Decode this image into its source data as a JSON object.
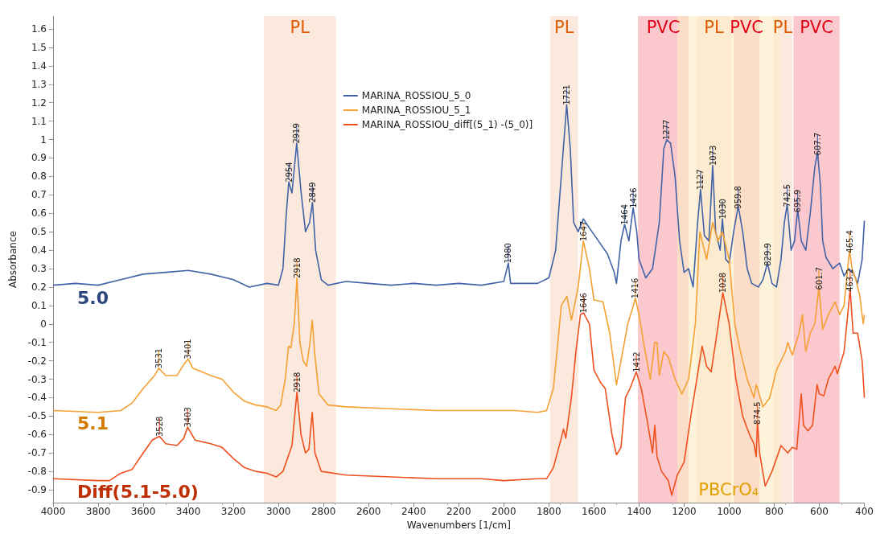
{
  "chart_data": {
    "type": "line",
    "xlabel": "Wavenumbers [1/cm]",
    "ylabel": "Absorbance",
    "xlim": [
      4000,
      400
    ],
    "xticks": [
      4000,
      3800,
      3600,
      3400,
      3200,
      3000,
      2800,
      2600,
      2400,
      2200,
      2000,
      1800,
      1600,
      1400,
      1200,
      1000,
      800,
      600,
      400
    ],
    "ylim": [
      -0.97,
      1.67
    ],
    "yticks": [
      -0.9,
      -0.8,
      -0.7,
      -0.6,
      -0.5,
      -0.4,
      -0.3,
      -0.2,
      -0.1,
      0,
      0.1,
      0.2,
      0.3,
      0.4,
      0.5,
      0.6,
      0.7,
      0.8,
      0.9,
      1,
      1.1,
      1.2,
      1.3,
      1.4,
      1.5,
      1.6
    ],
    "grid": false,
    "legend": "top",
    "marker": "none",
    "line_style": "solid",
    "series": [
      {
        "name": "MARINA_ROSSIOU_5_0",
        "color": "#4262a8",
        "x": [
          4000,
          3900,
          3800,
          3700,
          3600,
          3500,
          3400,
          3300,
          3200,
          3130,
          3050,
          3000,
          2980,
          2965,
          2954,
          2940,
          2919,
          2900,
          2880,
          2862,
          2849,
          2835,
          2810,
          2780,
          2700,
          2600,
          2500,
          2400,
          2300,
          2200,
          2100,
          2000,
          1980,
          1970,
          1900,
          1850,
          1800,
          1770,
          1745,
          1721,
          1705,
          1690,
          1670,
          1647,
          1620,
          1580,
          1540,
          1510,
          1500,
          1480,
          1464,
          1445,
          1426,
          1410,
          1400,
          1370,
          1340,
          1310,
          1290,
          1277,
          1260,
          1240,
          1220,
          1200,
          1180,
          1160,
          1140,
          1127,
          1110,
          1090,
          1073,
          1060,
          1040,
          1030,
          1015,
          1000,
          980,
          959.8,
          940,
          920,
          900,
          870,
          850,
          829.9,
          810,
          790,
          770,
          755,
          742.5,
          725,
          710,
          695.9,
          680,
          660,
          640,
          620,
          607.7,
          595,
          585,
          570,
          540,
          510,
          490,
          470,
          450,
          430,
          410,
          400
        ],
        "values": [
          0.21,
          0.22,
          0.21,
          0.24,
          0.27,
          0.28,
          0.29,
          0.27,
          0.24,
          0.2,
          0.22,
          0.21,
          0.3,
          0.6,
          0.77,
          0.71,
          0.98,
          0.72,
          0.5,
          0.55,
          0.66,
          0.4,
          0.24,
          0.21,
          0.23,
          0.22,
          0.21,
          0.22,
          0.21,
          0.22,
          0.21,
          0.23,
          0.33,
          0.22,
          0.22,
          0.22,
          0.25,
          0.4,
          0.8,
          1.19,
          0.95,
          0.55,
          0.5,
          0.57,
          0.52,
          0.45,
          0.38,
          0.28,
          0.22,
          0.45,
          0.54,
          0.45,
          0.63,
          0.5,
          0.35,
          0.25,
          0.3,
          0.55,
          0.95,
          1.0,
          0.98,
          0.8,
          0.45,
          0.28,
          0.3,
          0.2,
          0.55,
          0.73,
          0.48,
          0.45,
          0.86,
          0.5,
          0.4,
          0.57,
          0.35,
          0.33,
          0.5,
          0.64,
          0.5,
          0.3,
          0.22,
          0.2,
          0.24,
          0.33,
          0.22,
          0.2,
          0.35,
          0.55,
          0.65,
          0.4,
          0.45,
          0.62,
          0.45,
          0.4,
          0.6,
          0.85,
          0.93,
          0.75,
          0.45,
          0.36,
          0.3,
          0.33,
          0.26,
          0.3,
          0.28,
          0.22,
          0.35,
          0.56
        ]
      },
      {
        "name": "MARINA_ROSSIOU_5_1",
        "color": "#f5a032",
        "x": [
          4000,
          3800,
          3700,
          3650,
          3600,
          3550,
          3531,
          3500,
          3450,
          3420,
          3401,
          3380,
          3300,
          3250,
          3200,
          3150,
          3100,
          3050,
          3010,
          2990,
          2970,
          2955,
          2945,
          2930,
          2918,
          2905,
          2890,
          2875,
          2860,
          2850,
          2840,
          2820,
          2780,
          2700,
          2500,
          2300,
          2100,
          1950,
          1850,
          1810,
          1780,
          1760,
          1745,
          1720,
          1700,
          1670,
          1647,
          1620,
          1600,
          1560,
          1530,
          1500,
          1480,
          1450,
          1430,
          1416,
          1400,
          1380,
          1350,
          1330,
          1320,
          1310,
          1290,
          1270,
          1240,
          1210,
          1180,
          1150,
          1130,
          1100,
          1073,
          1050,
          1030,
          1000,
          975,
          950,
          920,
          890,
          880,
          874.5,
          850,
          820,
          790,
          770,
          750,
          740,
          720,
          690,
          675,
          660,
          640,
          620,
          601.7,
          585,
          560,
          530,
          510,
          490,
          470,
          465.4,
          455,
          440,
          420,
          405,
          400
        ],
        "values": [
          -0.47,
          -0.48,
          -0.47,
          -0.43,
          -0.35,
          -0.28,
          -0.24,
          -0.28,
          -0.28,
          -0.22,
          -0.19,
          -0.24,
          -0.28,
          -0.3,
          -0.37,
          -0.42,
          -0.44,
          -0.45,
          -0.47,
          -0.44,
          -0.3,
          -0.12,
          -0.13,
          0.0,
          0.25,
          -0.1,
          -0.2,
          -0.23,
          -0.1,
          0.02,
          -0.15,
          -0.38,
          -0.44,
          -0.45,
          -0.46,
          -0.47,
          -0.47,
          -0.47,
          -0.48,
          -0.47,
          -0.35,
          -0.1,
          0.1,
          0.15,
          0.02,
          0.2,
          0.45,
          0.3,
          0.13,
          0.12,
          -0.05,
          -0.33,
          -0.2,
          0.0,
          0.08,
          0.14,
          0.05,
          -0.1,
          -0.3,
          -0.1,
          -0.1,
          -0.28,
          -0.15,
          -0.18,
          -0.3,
          -0.38,
          -0.3,
          0.0,
          0.5,
          0.35,
          0.55,
          0.45,
          0.5,
          0.35,
          0.0,
          -0.15,
          -0.3,
          -0.4,
          -0.33,
          -0.35,
          -0.45,
          -0.4,
          -0.25,
          -0.2,
          -0.15,
          -0.1,
          -0.17,
          -0.05,
          0.05,
          -0.15,
          -0.05,
          0.0,
          0.2,
          -0.03,
          0.05,
          0.12,
          0.05,
          0.1,
          0.35,
          0.4,
          0.3,
          0.25,
          0.15,
          0.0,
          0.05
        ]
      },
      {
        "name": "MARINA_ROSSIOU_diff[(5_1) -(5_0)]",
        "color": "#f0501e",
        "x": [
          4000,
          3800,
          3750,
          3700,
          3650,
          3600,
          3560,
          3528,
          3500,
          3450,
          3420,
          3403,
          3370,
          3300,
          3250,
          3200,
          3150,
          3100,
          3050,
          3010,
          2980,
          2960,
          2940,
          2918,
          2900,
          2880,
          2865,
          2850,
          2838,
          2810,
          2700,
          2500,
          2300,
          2100,
          2000,
          1850,
          1810,
          1780,
          1745,
          1735,
          1725,
          1700,
          1680,
          1660,
          1646,
          1620,
          1600,
          1570,
          1550,
          1520,
          1500,
          1480,
          1460,
          1440,
          1412,
          1390,
          1360,
          1340,
          1330,
          1320,
          1300,
          1270,
          1255,
          1230,
          1200,
          1170,
          1150,
          1120,
          1100,
          1080,
          1060,
          1028,
          1000,
          970,
          940,
          910,
          890,
          880,
          874.5,
          865,
          840,
          810,
          770,
          740,
          720,
          700,
          680,
          670,
          650,
          630,
          610,
          600,
          580,
          560,
          530,
          520,
          490,
          470,
          463.2,
          450,
          430,
          410,
          400
        ],
        "values": [
          -0.84,
          -0.85,
          -0.85,
          -0.81,
          -0.79,
          -0.7,
          -0.63,
          -0.61,
          -0.65,
          -0.66,
          -0.62,
          -0.56,
          -0.63,
          -0.65,
          -0.67,
          -0.73,
          -0.78,
          -0.8,
          -0.81,
          -0.83,
          -0.8,
          -0.73,
          -0.66,
          -0.37,
          -0.6,
          -0.7,
          -0.68,
          -0.48,
          -0.7,
          -0.8,
          -0.82,
          -0.83,
          -0.84,
          -0.84,
          -0.85,
          -0.84,
          -0.84,
          -0.78,
          -0.62,
          -0.57,
          -0.62,
          -0.4,
          -0.15,
          0.05,
          0.06,
          0.0,
          -0.25,
          -0.32,
          -0.35,
          -0.6,
          -0.71,
          -0.67,
          -0.4,
          -0.35,
          -0.26,
          -0.35,
          -0.55,
          -0.7,
          -0.55,
          -0.72,
          -0.8,
          -0.85,
          -0.93,
          -0.82,
          -0.75,
          -0.5,
          -0.35,
          -0.12,
          -0.23,
          -0.26,
          -0.1,
          0.17,
          0.0,
          -0.3,
          -0.5,
          -0.6,
          -0.65,
          -0.72,
          -0.53,
          -0.7,
          -0.88,
          -0.8,
          -0.66,
          -0.7,
          -0.67,
          -0.68,
          -0.38,
          -0.55,
          -0.58,
          -0.55,
          -0.33,
          -0.38,
          -0.39,
          -0.3,
          -0.23,
          -0.27,
          -0.15,
          0.1,
          0.19,
          -0.05,
          -0.05,
          -0.2,
          -0.4
        ]
      }
    ],
    "bands": [
      {
        "axis": "x",
        "from": 3065,
        "to": 2745,
        "label": "PL",
        "color": "#fbe7da"
      },
      {
        "axis": "x",
        "from": 1795,
        "to": 1670,
        "label": "PL",
        "color": "#fbe7da"
      },
      {
        "axis": "x",
        "from": 1405,
        "to": 1180,
        "label": "PVC",
        "color": "#fbc3c8"
      },
      {
        "axis": "x",
        "from": 1145,
        "to": 990,
        "label": "PL",
        "color": "#fbe7da"
      },
      {
        "axis": "x",
        "from": 980,
        "to": 865,
        "label": "PVC",
        "color": "#fbc3c8"
      },
      {
        "axis": "x",
        "from": 805,
        "to": 720,
        "label": "PL",
        "color": "#fbe7da"
      },
      {
        "axis": "x",
        "from": 715,
        "to": 510,
        "label": "PVC",
        "color": "#fbc3c8"
      },
      {
        "axis": "x",
        "from": 1230,
        "to": 775,
        "label": "PBCrO₄",
        "color": "#fdedc4"
      }
    ],
    "annotations": [
      "5.0",
      "5.1",
      "Diff(5.1-5.0)",
      {
        "text": "2954",
        "x": 2954,
        "y": 0.77
      },
      {
        "text": "2919",
        "x": 2919,
        "y": 0.98
      },
      {
        "text": "2849",
        "x": 2849,
        "y": 0.66
      },
      {
        "text": "1980",
        "x": 1980,
        "y": 0.33
      },
      {
        "text": "1721",
        "x": 1721,
        "y": 1.19
      },
      {
        "text": "1464",
        "x": 1464,
        "y": 0.54
      },
      {
        "text": "1426",
        "x": 1426,
        "y": 0.63
      },
      {
        "text": "1277",
        "x": 1277,
        "y": 1.0
      },
      {
        "text": "1127",
        "x": 1127,
        "y": 0.73
      },
      {
        "text": "1073",
        "x": 1073,
        "y": 0.86
      },
      {
        "text": "1030",
        "x": 1030,
        "y": 0.57
      },
      {
        "text": "959.8",
        "x": 959.8,
        "y": 0.64
      },
      {
        "text": "829.9",
        "x": 829.9,
        "y": 0.33
      },
      {
        "text": "742.5",
        "x": 742.5,
        "y": 0.65
      },
      {
        "text": "695.9",
        "x": 695.9,
        "y": 0.62
      },
      {
        "text": "607.7",
        "x": 607.7,
        "y": 0.93
      },
      {
        "text": "2918",
        "x": 2918,
        "y": 0.25
      },
      {
        "text": "3531",
        "x": 3531,
        "y": -0.24
      },
      {
        "text": "3401",
        "x": 3401,
        "y": -0.19
      },
      {
        "text": "1647",
        "x": 1647,
        "y": 0.45
      },
      {
        "text": "1416",
        "x": 1416,
        "y": 0.14
      },
      {
        "text": "601.7",
        "x": 601.7,
        "y": 0.2
      },
      {
        "text": "465.4",
        "x": 465.4,
        "y": 0.4
      },
      {
        "text": "3528",
        "x": 3528,
        "y": -0.61
      },
      {
        "text": "3403",
        "x": 3403,
        "y": -0.56
      },
      {
        "text": "2918",
        "x": 2918,
        "y": -0.37
      },
      {
        "text": "1646",
        "x": 1646,
        "y": 0.06
      },
      {
        "text": "1412",
        "x": 1412,
        "y": -0.26
      },
      {
        "text": "1028",
        "x": 1028,
        "y": 0.17
      },
      {
        "text": "874.5",
        "x": 874.5,
        "y": -0.53
      },
      {
        "text": "463.2",
        "x": 463.2,
        "y": 0.19
      }
    ]
  }
}
